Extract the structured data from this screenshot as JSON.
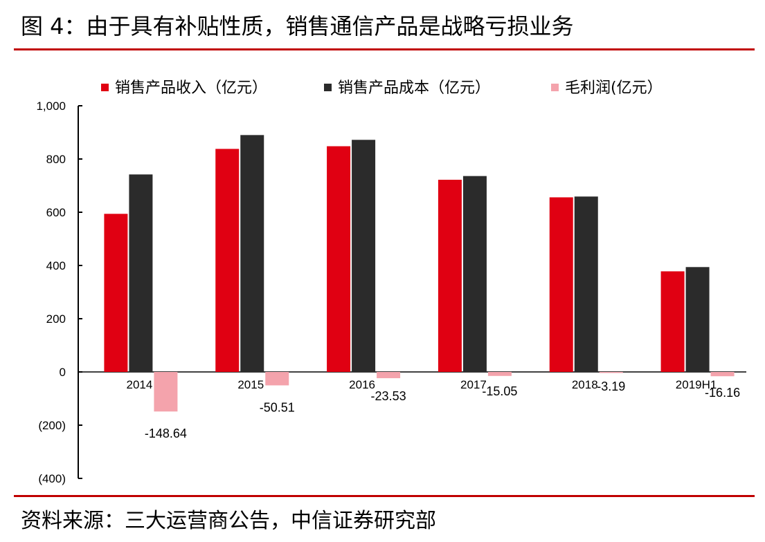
{
  "header": {
    "title": "图 4：由于具有补贴性质，销售通信产品是战略亏损业务"
  },
  "footer": {
    "source": "资料来源：三大运营商公告，中信证券研究部"
  },
  "chart_data": {
    "type": "bar",
    "categories": [
      "2014",
      "2015",
      "2016",
      "2017",
      "2018",
      "2019H1"
    ],
    "series": [
      {
        "name": "销售产品收入（亿元）",
        "color": "#e00012",
        "values": [
          594,
          838,
          848,
          722,
          656,
          378
        ]
      },
      {
        "name": "销售产品成本（亿元）",
        "color": "#2b2b2b",
        "values": [
          742,
          890,
          872,
          736,
          659,
          394
        ]
      },
      {
        "name": "毛利润(亿元）",
        "color": "#f4a3ac",
        "values": [
          -148.64,
          -50.51,
          -23.53,
          -15.05,
          -3.19,
          -16.16
        ],
        "data_labels": [
          "-148.64",
          "-50.51",
          "-23.53",
          "-15.05",
          "-3.19",
          "-16.16"
        ]
      }
    ],
    "ylim": [
      -400,
      1000
    ],
    "yticks": [
      {
        "value": 1000,
        "label": "1,000"
      },
      {
        "value": 800,
        "label": "800"
      },
      {
        "value": 600,
        "label": "600"
      },
      {
        "value": 400,
        "label": "400"
      },
      {
        "value": 200,
        "label": "200"
      },
      {
        "value": 0,
        "label": "0"
      },
      {
        "value": -200,
        "label": "(200)"
      },
      {
        "value": -400,
        "label": "(400)"
      }
    ],
    "legend_position": "top",
    "grid": false,
    "title": "",
    "xlabel": "",
    "ylabel": ""
  }
}
